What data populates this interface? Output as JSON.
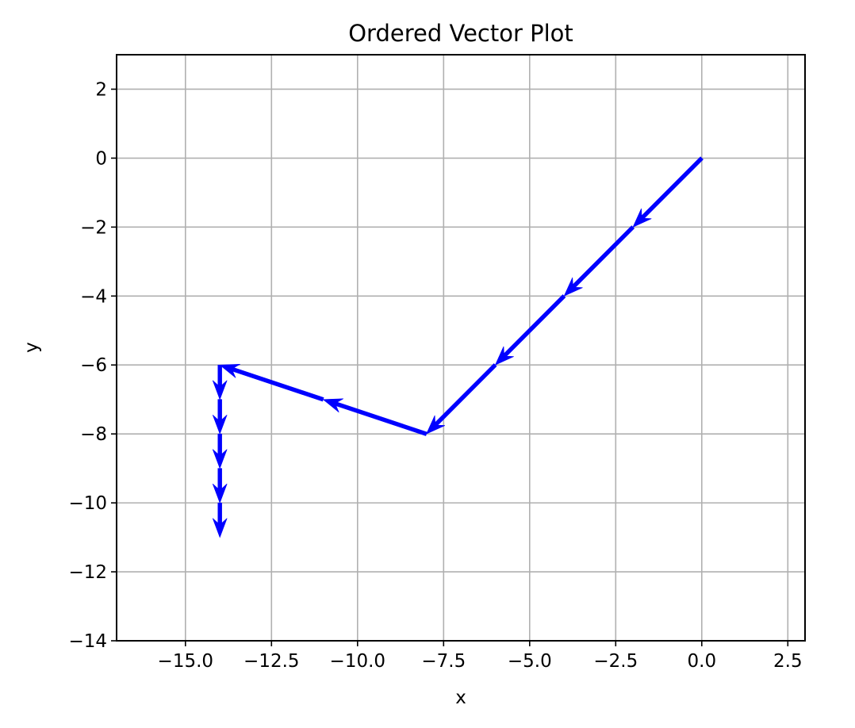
{
  "chart_data": {
    "type": "quiver",
    "title": "Ordered Vector Plot",
    "xlabel": "x",
    "ylabel": "y",
    "xlim": [
      -17.0,
      3.0
    ],
    "ylim": [
      -14.0,
      3.0
    ],
    "xticks": [
      -15.0,
      -12.5,
      -10.0,
      -7.5,
      -5.0,
      -2.5,
      0.0,
      2.5
    ],
    "xtick_labels": [
      "−15.0",
      "−12.5",
      "−10.0",
      "−7.5",
      "−5.0",
      "−2.5",
      "0.0",
      "2.5"
    ],
    "yticks": [
      2,
      0,
      -2,
      -4,
      -6,
      -8,
      -10,
      -12,
      -14
    ],
    "ytick_labels": [
      "2",
      "0",
      "−2",
      "−4",
      "−6",
      "−8",
      "−10",
      "−12",
      "−14"
    ],
    "grid": true,
    "color": "#0000ff",
    "vectors": [
      {
        "x": 0,
        "y": 0,
        "u": -2,
        "v": -2
      },
      {
        "x": -2,
        "y": -2,
        "u": -2,
        "v": -2
      },
      {
        "x": -4,
        "y": -4,
        "u": -2,
        "v": -2
      },
      {
        "x": -6,
        "y": -6,
        "u": -2,
        "v": -2
      },
      {
        "x": -8,
        "y": -8,
        "u": -3,
        "v": 1
      },
      {
        "x": -11,
        "y": -7,
        "u": -3,
        "v": 1
      },
      {
        "x": -14,
        "y": -6,
        "u": 0,
        "v": -1
      },
      {
        "x": -14,
        "y": -7,
        "u": 0,
        "v": -1
      },
      {
        "x": -14,
        "y": -8,
        "u": 0,
        "v": -1
      },
      {
        "x": -14,
        "y": -9,
        "u": 0,
        "v": -1
      },
      {
        "x": -14,
        "y": -10,
        "u": 0,
        "v": -1
      }
    ]
  }
}
